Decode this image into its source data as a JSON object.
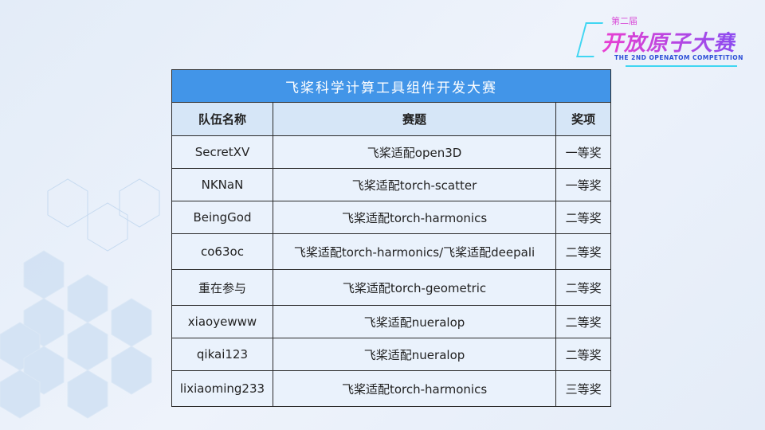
{
  "logo": {
    "edition": "第二届",
    "name": "开放原子大赛",
    "english": "THE 2ND OPENATOM COMPETITION"
  },
  "table": {
    "title": "飞桨科学计算工具组件开发大赛",
    "headers": [
      "队伍名称",
      "赛题",
      "奖项"
    ],
    "rows": [
      [
        "SecretXV",
        "飞桨适配open3D",
        "一等奖"
      ],
      [
        "NKNaN",
        "飞桨适配torch-scatter",
        "一等奖"
      ],
      [
        "BeingGod",
        "飞桨适配torch-harmonics",
        "二等奖"
      ],
      [
        "co63oc",
        "飞桨适配torch-harmonics/飞桨适配deepali",
        "二等奖"
      ],
      [
        "重在参与",
        "飞桨适配torch-geometric",
        "二等奖"
      ],
      [
        "xiaoyewww",
        "飞桨适配nueralop",
        "二等奖"
      ],
      [
        "qikai123",
        "飞桨适配nueralop",
        "二等奖"
      ],
      [
        "lixiaoming233",
        "飞桨适配torch-harmonics",
        "三等奖"
      ]
    ]
  },
  "colors": {
    "title_bg": "#4295e8",
    "header_bg": "#d6e6f7",
    "cell_bg": "#eaf2fc"
  }
}
